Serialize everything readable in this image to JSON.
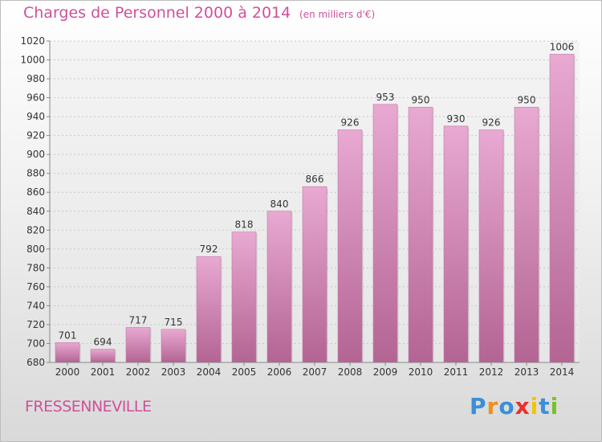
{
  "header": {
    "title": "Charges de Personnel 2000 à 2014",
    "subtitle": "(en milliers d'€)"
  },
  "footer": {
    "commune": "FRESSENNEVILLE",
    "logo_letters": [
      "P",
      "r",
      "o",
      "x",
      "i",
      "t",
      "i"
    ],
    "logo_colors": [
      "#3a8fd8",
      "#f28c1c",
      "#3a8fd8",
      "#e8312b",
      "#f2c500",
      "#3a8fd8",
      "#7bbf2a"
    ]
  },
  "colors": {
    "bar_top": "#e8a9d2",
    "bar_bottom": "#b36493",
    "accent": "#d0509a"
  },
  "chart_data": {
    "type": "bar",
    "title": "Charges de Personnel 2000 à 2014",
    "subtitle": "(en milliers d'€)",
    "xlabel": "",
    "ylabel": "",
    "categories": [
      "2000",
      "2001",
      "2002",
      "2003",
      "2004",
      "2005",
      "2006",
      "2007",
      "2008",
      "2009",
      "2010",
      "2011",
      "2012",
      "2013",
      "2014"
    ],
    "values": [
      701,
      694,
      717,
      715,
      792,
      818,
      840,
      866,
      926,
      953,
      950,
      930,
      926,
      950,
      1006
    ],
    "ylim": [
      680,
      1020
    ],
    "yticks": [
      680,
      700,
      720,
      740,
      760,
      780,
      800,
      820,
      840,
      860,
      880,
      900,
      920,
      940,
      960,
      980,
      1000,
      1020
    ],
    "grid": "horizontal-dashed",
    "data_labels": true
  }
}
